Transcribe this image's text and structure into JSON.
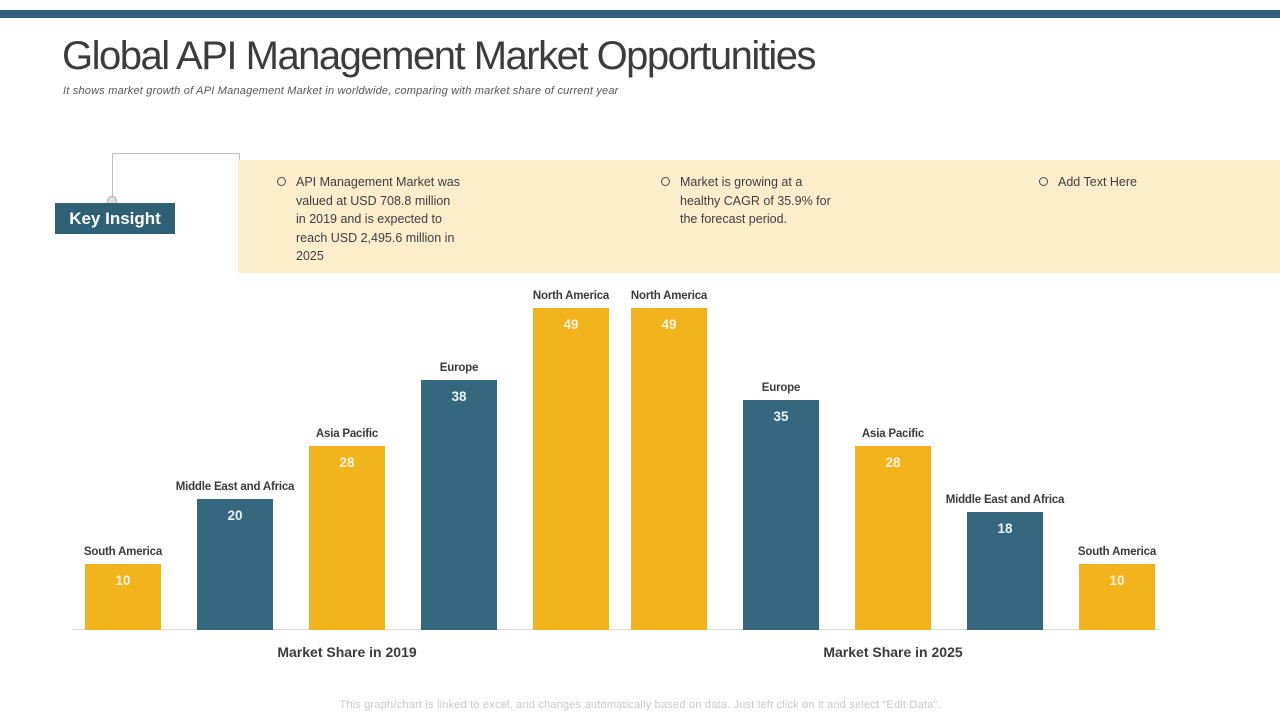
{
  "page": {
    "title": "Global API Management Market Opportunities",
    "subtitle": "It shows market growth of API Management Market in worldwide, comparing with market share of current year",
    "footer": "This graph/chart is linked to excel, and changes automatically based on data. Just left click on it and select “Edit Data”."
  },
  "key_insight": {
    "label": "Key Insight",
    "bullets": [
      "API Management Market was valued at USD 708.8 million in 2019 and is expected to reach USD 2,495.6 million in 2025",
      "Market is growing at a healthy CAGR of 35.9% for the forecast period.",
      "Add Text Here"
    ]
  },
  "colors": {
    "accent_teal": "#33617B",
    "key_insight_box": "#2F6175",
    "bar_teal": "#35687F",
    "bar_yellow": "#F2B41D",
    "banner_cream": "#FDEECB",
    "value_label_on_yellow": "#FBF3DC",
    "value_label_on_teal": "#ECF3F5"
  },
  "chart_data": {
    "type": "bar",
    "title": "",
    "xlabel": "",
    "ylabel": "",
    "ylim": [
      0,
      49
    ],
    "grid": false,
    "legend": false,
    "value_labels": "inside-top",
    "category_labels": "above-bar",
    "groups": [
      {
        "label": "Market Share in 2019",
        "categories": [
          "South America",
          "Middle East and Africa",
          "Asia Pacific",
          "Europe",
          "North America"
        ],
        "values": [
          10,
          20,
          28,
          38,
          49
        ],
        "bar_colors": [
          "#F2B41D",
          "#35687F",
          "#F2B41D",
          "#35687F",
          "#F2B41D"
        ]
      },
      {
        "label": "Market Share in 2025",
        "categories": [
          "North America",
          "Europe",
          "Asia Pacific",
          "Middle East and Africa",
          "South America"
        ],
        "values": [
          49,
          35,
          28,
          18,
          10
        ],
        "bar_colors": [
          "#F2B41D",
          "#35687F",
          "#F2B41D",
          "#35687F",
          "#F2B41D"
        ]
      }
    ]
  }
}
